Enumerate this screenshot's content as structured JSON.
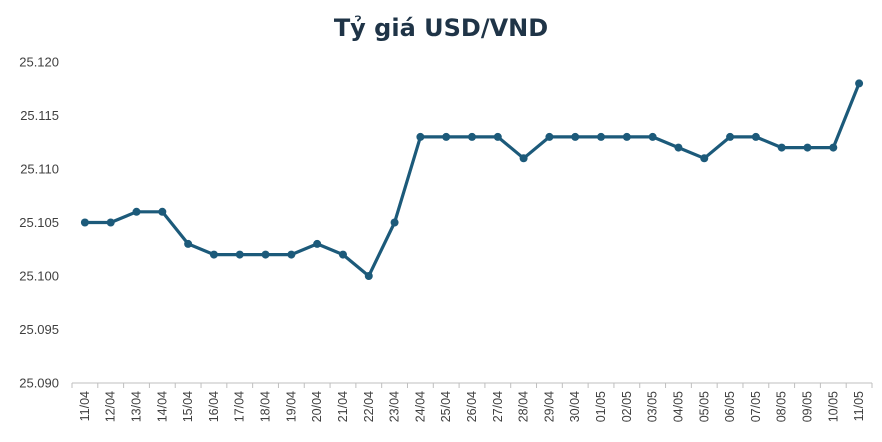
{
  "chart_data": {
    "type": "line",
    "title": "Tỷ giá USD/VND",
    "xlabel": "",
    "ylabel": "",
    "x": [
      "11/04",
      "12/04",
      "13/04",
      "14/04",
      "15/04",
      "16/04",
      "17/04",
      "18/04",
      "19/04",
      "20/04",
      "21/04",
      "22/04",
      "23/04",
      "24/04",
      "25/04",
      "26/04",
      "27/04",
      "28/04",
      "29/04",
      "30/04",
      "01/05",
      "02/05",
      "03/05",
      "04/05",
      "05/05",
      "06/05",
      "07/05",
      "08/05",
      "09/05",
      "10/05",
      "11/05"
    ],
    "series": [
      {
        "values": [
          25105,
          25105,
          25106,
          25106,
          25103,
          25102,
          25102,
          25102,
          25102,
          25103,
          25102,
          25100,
          25105,
          25113,
          25113,
          25113,
          25113,
          25111,
          25113,
          25113,
          25113,
          25113,
          25113,
          25112,
          25111,
          25113,
          25113,
          25112,
          25112,
          25112,
          25118
        ]
      }
    ],
    "ylim": [
      25090,
      25120
    ],
    "yticks": [
      25090,
      25095,
      25100,
      25105,
      25110,
      25115,
      25120
    ],
    "ytick_labels": [
      "25.090",
      "25.095",
      "25.100",
      "25.105",
      "25.110",
      "25.115",
      "25.120"
    ],
    "grid": false,
    "legend": "none",
    "line_color": "#1c5a7a",
    "axis_color": "#bfbfbf"
  }
}
